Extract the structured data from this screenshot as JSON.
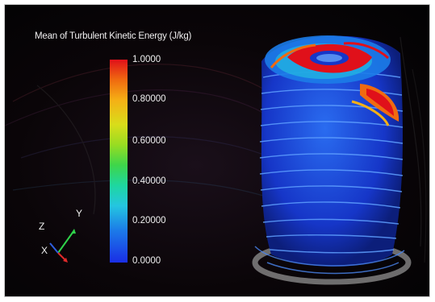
{
  "colorbar": {
    "title": "Mean of Turbulent Kinetic Energy (J/kg)",
    "ticks": [
      "1.0000",
      "0.80000",
      "0.60000",
      "0.40000",
      "0.20000",
      "0.0000"
    ],
    "min": 0.0,
    "max": 1.0
  },
  "axes": {
    "z": "Z",
    "y": "Y",
    "x": "X"
  },
  "colors": {
    "background": "#050306",
    "low": "#1a2ee6",
    "high": "#e0101a",
    "text": "#f0f0f0"
  }
}
